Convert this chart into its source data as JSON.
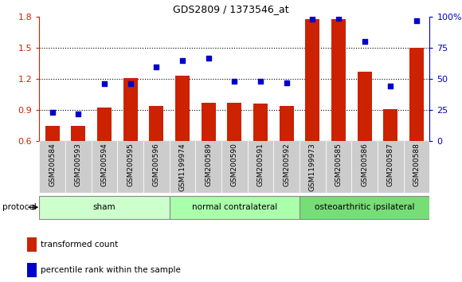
{
  "title": "GDS2809 / 1373546_at",
  "samples": [
    "GSM200584",
    "GSM200593",
    "GSM200594",
    "GSM200595",
    "GSM200596",
    "GSM1199974",
    "GSM200589",
    "GSM200590",
    "GSM200591",
    "GSM200592",
    "GSM1199973",
    "GSM200585",
    "GSM200586",
    "GSM200587",
    "GSM200588"
  ],
  "bar_values": [
    0.75,
    0.75,
    0.92,
    1.21,
    0.94,
    1.23,
    0.97,
    0.97,
    0.96,
    0.94,
    1.78,
    1.78,
    1.27,
    0.91,
    1.5
  ],
  "dot_values": [
    23,
    22,
    46,
    46,
    60,
    65,
    67,
    48,
    48,
    47,
    98,
    99,
    80,
    44,
    97
  ],
  "bar_color": "#cc2200",
  "dot_color": "#0000cc",
  "ylim_left": [
    0.6,
    1.8
  ],
  "ylim_right": [
    0,
    100
  ],
  "yticks_left": [
    0.6,
    0.9,
    1.2,
    1.5,
    1.8
  ],
  "yticks_right": [
    0,
    25,
    50,
    75,
    100
  ],
  "groups": [
    {
      "label": "sham",
      "start": 0,
      "end": 5,
      "color": "#ccffcc"
    },
    {
      "label": "normal contralateral",
      "start": 5,
      "end": 10,
      "color": "#aaffaa"
    },
    {
      "label": "osteoarthritic ipsilateral",
      "start": 10,
      "end": 15,
      "color": "#77dd77"
    }
  ],
  "protocol_label": "protocol",
  "legend_bar_label": "transformed count",
  "legend_dot_label": "percentile rank within the sample",
  "background_color": "#ffffff",
  "tick_label_color_left": "#cc2200",
  "tick_label_color_right": "#0000cc",
  "bar_bottom": 0.6,
  "xtick_bg_color": "#cccccc"
}
